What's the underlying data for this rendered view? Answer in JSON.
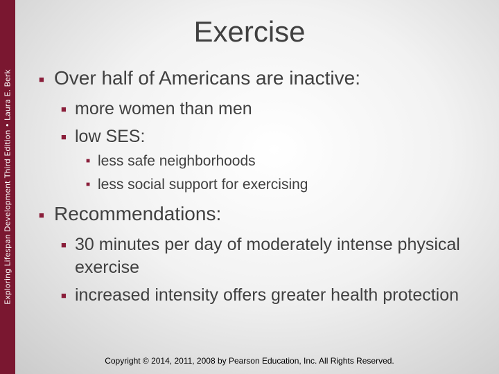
{
  "sidebar": "Exploring Lifespan Development Third Edition • Laura E. Berk",
  "title": "Exercise",
  "bullets": [
    {
      "text": "Over half of Americans are inactive:",
      "children": [
        {
          "text": "more women than men",
          "children": []
        },
        {
          "text": "low SES:",
          "children": [
            {
              "text": "less safe neighborhoods"
            },
            {
              "text": "less social support for exercising"
            }
          ]
        }
      ]
    },
    {
      "text": "Recommendations:",
      "children": [
        {
          "text": "30 minutes per day of moderately intense physical exercise",
          "children": []
        },
        {
          "text": "increased intensity offers greater health protection",
          "children": []
        }
      ]
    }
  ],
  "footer": "Copyright © 2014, 2011, 2008 by Pearson Education, Inc. All Rights Reserved."
}
